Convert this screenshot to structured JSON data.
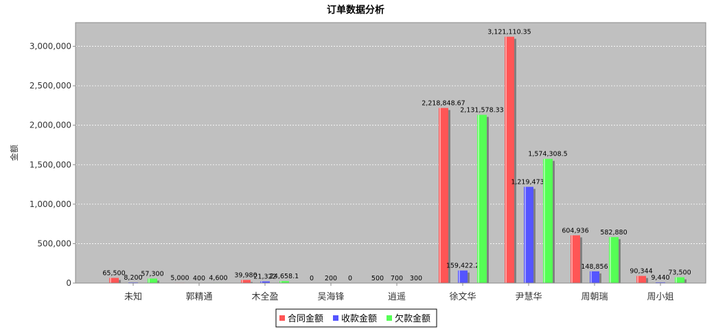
{
  "chart_data": {
    "type": "bar",
    "title": "订单数据分析",
    "ylabel": "金额",
    "xlabel": "",
    "ylim": [
      0,
      3300000
    ],
    "yticks": [
      0,
      500000,
      1000000,
      1500000,
      2000000,
      2500000,
      3000000
    ],
    "ytick_labels": [
      "0",
      "500,000",
      "1,000,000",
      "1,500,000",
      "2,000,000",
      "2,500,000",
      "3,000,000"
    ],
    "grid": true,
    "legend_position": "bottom",
    "categories": [
      "未知",
      "郭精通",
      "木全盈",
      "吴海锋",
      "逍遥",
      "徐文华",
      "尹慧华",
      "周朝瑞",
      "周小姐"
    ],
    "series": [
      {
        "name": "合同金额",
        "color": "#ff5555",
        "values": [
          65500,
          5000,
          39980,
          0,
          500,
          2218848.67,
          3121110.35,
          604936,
          90344
        ],
        "labels": [
          "65,500",
          "5,000",
          "39,980",
          "0",
          "500",
          "2,218,848.67",
          "3,121,110.35",
          "604,936",
          "90,344"
        ]
      },
      {
        "name": "收款金额",
        "color": "#5555ff",
        "values": [
          8200,
          400,
          21322,
          200,
          700,
          159422.2,
          1219473,
          148856,
          9440
        ],
        "labels": [
          "8,200",
          "400",
          "21,322",
          "200",
          "700",
          "159,422.2",
          "1,219,473.",
          "148,856",
          "9,440"
        ]
      },
      {
        "name": "欠款金额",
        "color": "#55ff55",
        "values": [
          57300,
          4600,
          24658.1,
          0,
          300,
          2131578.33,
          1574308.5,
          582880,
          73500
        ],
        "labels": [
          "57,300",
          "4,600",
          "24,658.1",
          "0",
          "300",
          "2,131,578.33",
          "1,574,308.5",
          "582,880",
          "73,500"
        ]
      }
    ]
  }
}
